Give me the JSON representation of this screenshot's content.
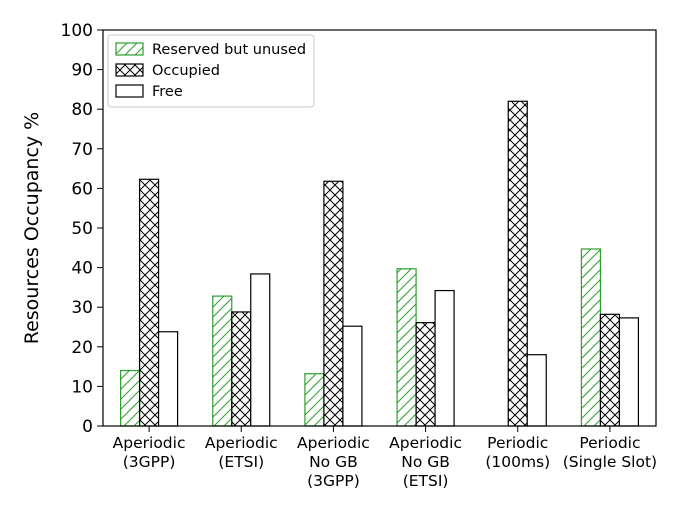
{
  "chart_data": {
    "type": "bar",
    "title": "",
    "xlabel": "",
    "ylabel": "Resources Occupancy %",
    "ylim": [
      0,
      100
    ],
    "yticks": [
      0,
      10,
      20,
      30,
      40,
      50,
      60,
      70,
      80,
      90,
      100
    ],
    "grid": false,
    "legend_position": "top-left",
    "categories": [
      [
        "Aperiodic",
        "(3GPP)"
      ],
      [
        "Aperiodic",
        "(ETSI)"
      ],
      [
        "Aperiodic",
        "No GB",
        "(3GPP)"
      ],
      [
        "Aperiodic",
        "No GB",
        "(ETSI)"
      ],
      [
        "Periodic",
        "(100ms)"
      ],
      [
        "Periodic",
        "(Single Slot)"
      ]
    ],
    "series": [
      {
        "name": "Reserved but unused",
        "color": "#2ca02c",
        "pattern": "diagonal-hatch",
        "values": [
          14,
          32.8,
          13.2,
          39.7,
          0,
          44.7
        ]
      },
      {
        "name": "Occupied",
        "color": "#000000",
        "pattern": "cross-hatch",
        "values": [
          62.3,
          28.8,
          61.8,
          26.1,
          82,
          28.2
        ]
      },
      {
        "name": "Free",
        "color": "#000000",
        "pattern": "none",
        "values": [
          23.8,
          38.4,
          25.2,
          34.2,
          18,
          27.3
        ]
      }
    ]
  }
}
